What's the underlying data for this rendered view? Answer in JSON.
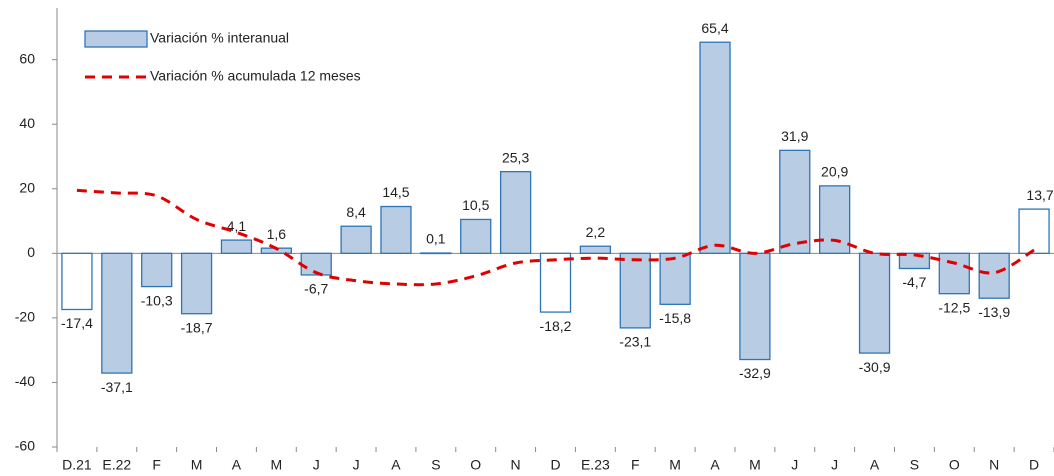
{
  "chart_data": {
    "type": "bar",
    "categories": [
      "D.21",
      "E.22",
      "F",
      "M",
      "A",
      "M",
      "J",
      "J",
      "A",
      "S",
      "O",
      "N",
      "D",
      "E.23",
      "F",
      "M",
      "A",
      "M",
      "J",
      "J",
      "A",
      "S",
      "O",
      "N",
      "D"
    ],
    "series": [
      {
        "name": "Variación % interanual",
        "type": "bar",
        "color": "#b8cce4",
        "edge_color": "#2e75b6",
        "colors": [
          "#ffffff",
          "#b8cce4",
          "#b8cce4",
          "#b8cce4",
          "#b8cce4",
          "#b8cce4",
          "#b8cce4",
          "#b8cce4",
          "#b8cce4",
          "#b8cce4",
          "#b8cce4",
          "#b8cce4",
          "#ffffff",
          "#b8cce4",
          "#b8cce4",
          "#b8cce4",
          "#b8cce4",
          "#b8cce4",
          "#b8cce4",
          "#b8cce4",
          "#b8cce4",
          "#b8cce4",
          "#b8cce4",
          "#b8cce4",
          "#ffffff"
        ],
        "values": [
          -17.4,
          -37.1,
          -10.3,
          -18.7,
          4.1,
          1.6,
          -6.7,
          8.4,
          14.5,
          0.1,
          10.5,
          25.3,
          -18.2,
          2.2,
          -23.1,
          -15.8,
          65.4,
          -32.9,
          31.9,
          20.9,
          -30.9,
          -4.7,
          -12.5,
          -13.9,
          13.7
        ],
        "value_labels": [
          "-17,4",
          "-37,1",
          "-10,3",
          "-18,7",
          "4,1",
          "1,6",
          "-6,7",
          "8,4",
          "14,5",
          "0,1",
          "10,5",
          "25,3",
          "-18,2",
          "2,2",
          "-23,1",
          "-15,8",
          "65,4",
          "-32,9",
          "31,9",
          "20,9",
          "-30,9",
          "-4,7",
          "-12,5",
          "-13,9",
          "13,7"
        ]
      },
      {
        "name": "Variación % acumulada 12 meses",
        "type": "line",
        "color": "#e00000",
        "dashed": true,
        "values": [
          19.5,
          18.7,
          17.8,
          10.5,
          6.5,
          1.5,
          -6,
          -8.5,
          -9.5,
          -9.5,
          -7,
          -3,
          -2,
          -1.5,
          -2,
          -1.5,
          2.5,
          0,
          3,
          4,
          0,
          -0.5,
          -3,
          -6,
          1
        ]
      }
    ],
    "ylim": [
      -60,
      76
    ],
    "yticks": [
      -60,
      -40,
      -20,
      0,
      20,
      40,
      60
    ],
    "legend": "top-left"
  }
}
